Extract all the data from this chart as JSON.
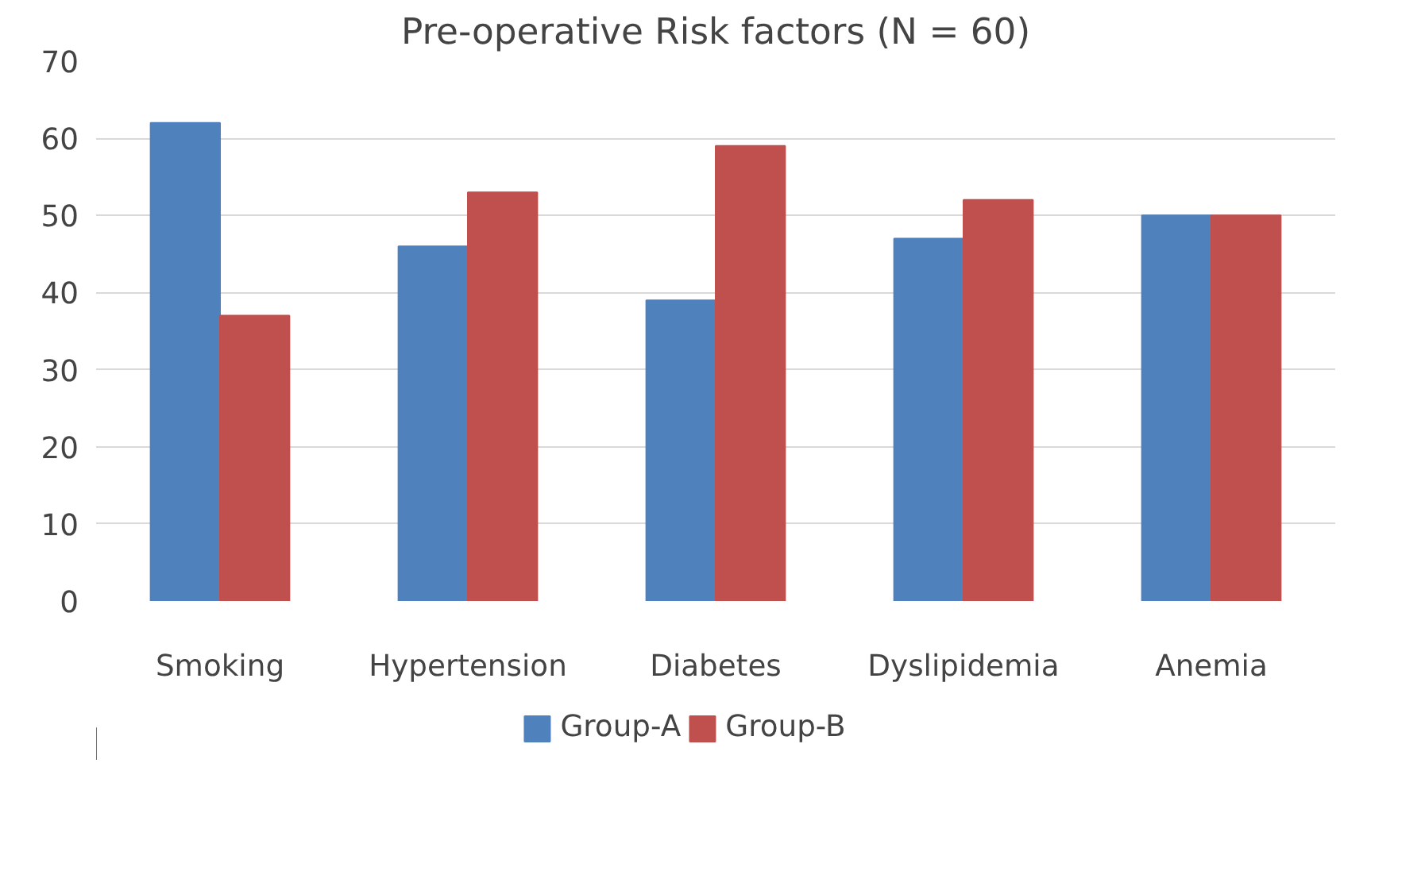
{
  "chart_data": {
    "type": "bar",
    "title": "Pre-operative Risk factors (N = 60)",
    "categories": [
      "Smoking",
      "Hypertension",
      "Diabetes",
      "Dyslipidemia",
      "Anemia"
    ],
    "series": [
      {
        "name": "Group-A",
        "color": "#4f81bd",
        "values": [
          62,
          46,
          39,
          47,
          50
        ]
      },
      {
        "name": "Group-B",
        "color": "#c0504d",
        "values": [
          37,
          53,
          59,
          52,
          50
        ]
      }
    ],
    "ylim": [
      0,
      70
    ],
    "yticks": [
      0,
      10,
      20,
      30,
      40,
      50,
      60,
      70
    ],
    "grid": "y",
    "legend": "bottom"
  }
}
